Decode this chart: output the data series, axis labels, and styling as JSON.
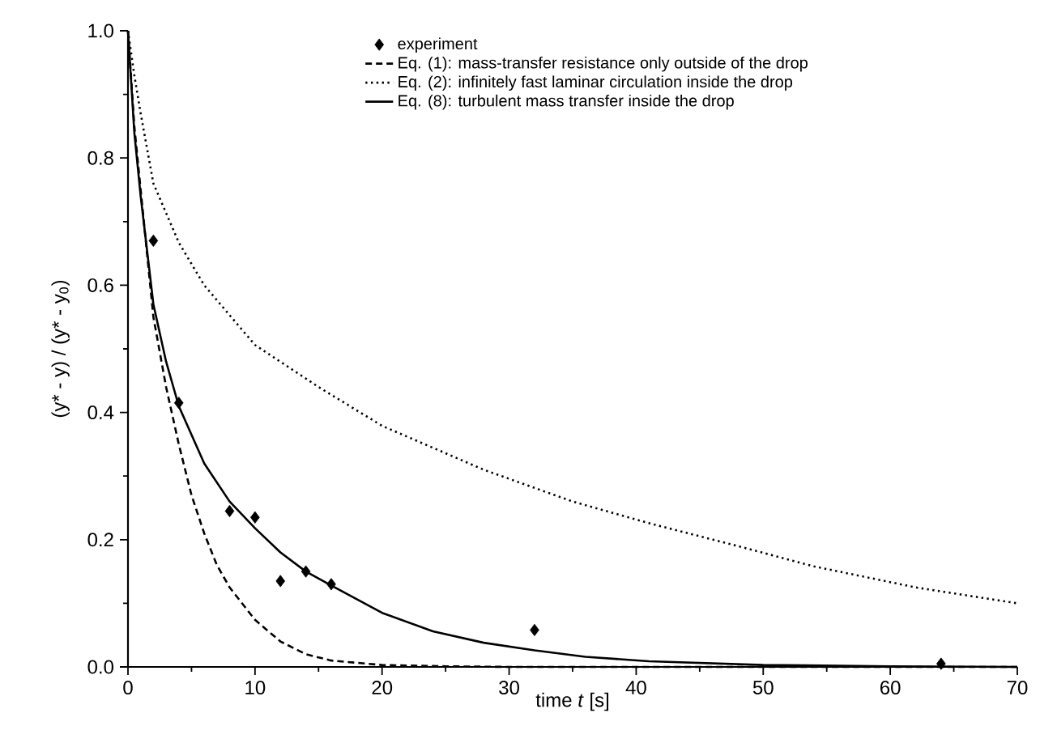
{
  "chart_data": {
    "type": "line",
    "xlabel": "time *t* [s]",
    "ylabel": "(y* - y) / (y* - y$_{0}$)",
    "xlim": [
      0,
      70
    ],
    "ylim": [
      0,
      1
    ],
    "xticks": [
      0,
      10,
      20,
      30,
      40,
      50,
      60,
      70
    ],
    "yticks": [
      {
        "value": 0,
        "label": "0.0"
      },
      {
        "value": 0.2,
        "label": "0.2"
      },
      {
        "value": 0.4,
        "label": "0.4"
      },
      {
        "value": 0.6,
        "label": "0.6"
      },
      {
        "value": 0.8,
        "label": "0.8"
      },
      {
        "value": 1,
        "label": "1.0"
      }
    ],
    "legend": "top right",
    "grid": false,
    "series": [
      {
        "name": "experiment",
        "type": "scatter",
        "marker": "diamond",
        "color": "#000000",
        "x": [
          2,
          4,
          8,
          10,
          12,
          14,
          16,
          32,
          64
        ],
        "values": [
          0.67,
          0.415,
          0.245,
          0.235,
          0.135,
          0.15,
          0.13,
          0.058,
          0.005
        ]
      },
      {
        "name": "Eq. (1): mass-transfer resistance only outside of the drop",
        "line_style": "dashed",
        "color": "#000000",
        "x": [
          0,
          0.5,
          1,
          2,
          3,
          4,
          5,
          6,
          7,
          8,
          10,
          12,
          14,
          16,
          20,
          25,
          30,
          40,
          50,
          60,
          70
        ],
        "values": [
          1,
          0.85,
          0.75,
          0.55,
          0.44,
          0.35,
          0.27,
          0.21,
          0.16,
          0.125,
          0.074,
          0.04,
          0.02,
          0.01,
          0.003,
          0.001,
          0,
          0,
          0,
          0,
          0
        ]
      },
      {
        "name": "Eq. (2): infinitely fast laminar circulation inside the drop",
        "line_style": "dotted",
        "color": "#000000",
        "x": [
          0,
          0.5,
          1,
          2,
          4,
          6,
          10,
          15,
          20,
          28,
          35,
          41,
          48,
          54,
          62,
          70
        ],
        "values": [
          1,
          0.93,
          0.87,
          0.76,
          0.667,
          0.6,
          0.506,
          0.44,
          0.379,
          0.31,
          0.26,
          0.226,
          0.19,
          0.158,
          0.125,
          0.1
        ]
      },
      {
        "name": "Eq. (8): turbulent mass transfer inside the drop",
        "line_style": "solid",
        "color": "#000000",
        "x": [
          0,
          0.5,
          1,
          2,
          3,
          4,
          6,
          8,
          10,
          12,
          14,
          16,
          20,
          24,
          28,
          32,
          36,
          41,
          50,
          60,
          70
        ],
        "values": [
          1,
          0.84,
          0.74,
          0.57,
          0.48,
          0.41,
          0.32,
          0.26,
          0.218,
          0.18,
          0.15,
          0.128,
          0.085,
          0.056,
          0.038,
          0.026,
          0.016,
          0.009,
          0.003,
          0.001,
          0
        ]
      }
    ]
  }
}
